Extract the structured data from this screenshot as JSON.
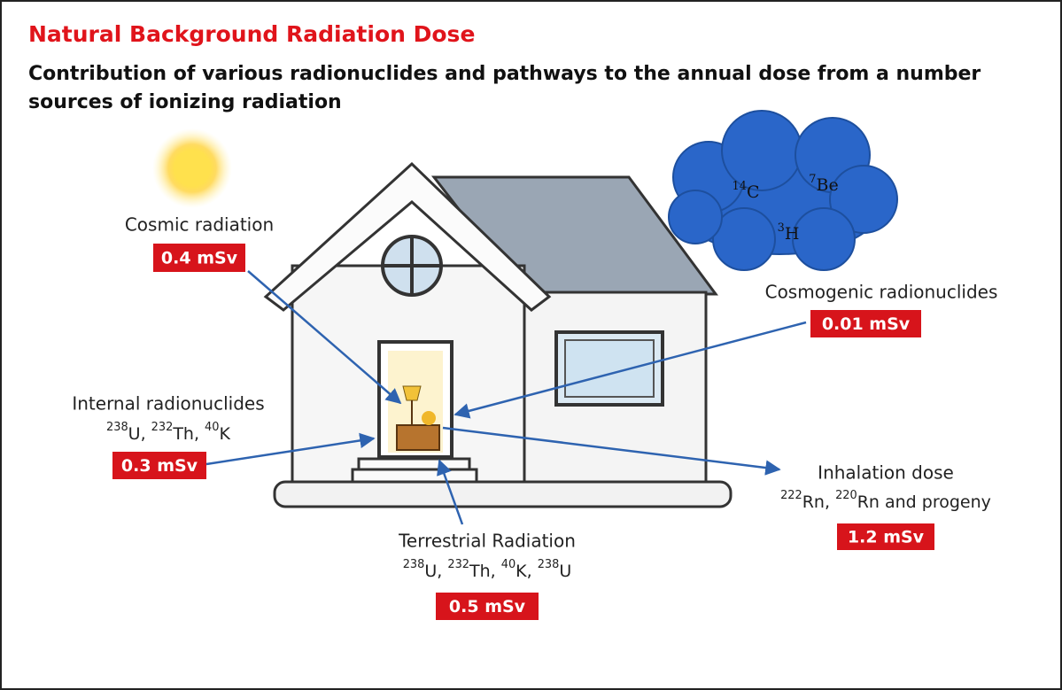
{
  "header": {
    "title": "Natural Background Radiation Dose",
    "subtitle_lines": [
      "Contribution of various radionuclides and pathways to the annual dose from a number",
      "sources of ionizing radiation"
    ]
  },
  "cloud": {
    "nuclides": [
      [
        {
          "text": "14",
          "sup": true
        },
        {
          "text": "C"
        }
      ],
      [
        {
          "text": "7",
          "sup": true
        },
        {
          "text": "Be"
        }
      ],
      [
        {
          "text": "3",
          "sup": true
        },
        {
          "text": "H"
        }
      ]
    ]
  },
  "sources": [
    {
      "name": "Cosmic radiation",
      "dose": "0.4 mSv"
    },
    {
      "name": "Cosmogenic radionuclides",
      "dose": "0.01 mSv"
    },
    {
      "name": "Internal radionuclides",
      "nuclides": [
        {
          "text": "238",
          "sup": true
        },
        {
          "text": "U, "
        },
        {
          "text": "232",
          "sup": true
        },
        {
          "text": "Th, "
        },
        {
          "text": "40",
          "sup": true
        },
        {
          "text": "K"
        }
      ],
      "dose": "0.3 mSv"
    },
    {
      "name": "Inhalation dose",
      "nuclides": [
        {
          "text": "222",
          "sup": true
        },
        {
          "text": "Rn, "
        },
        {
          "text": "220",
          "sup": true
        },
        {
          "text": "Rn and progeny"
        }
      ],
      "dose": "1.2 mSv"
    },
    {
      "name": "Terrestrial Radiation",
      "nuclides": [
        {
          "text": "238",
          "sup": true
        },
        {
          "text": "U, "
        },
        {
          "text": "232",
          "sup": true
        },
        {
          "text": "Th, "
        },
        {
          "text": "40",
          "sup": true
        },
        {
          "text": "K, "
        },
        {
          "text": "238",
          "sup": true
        },
        {
          "text": "U"
        }
      ],
      "dose": "0.5 mSv"
    }
  ]
}
